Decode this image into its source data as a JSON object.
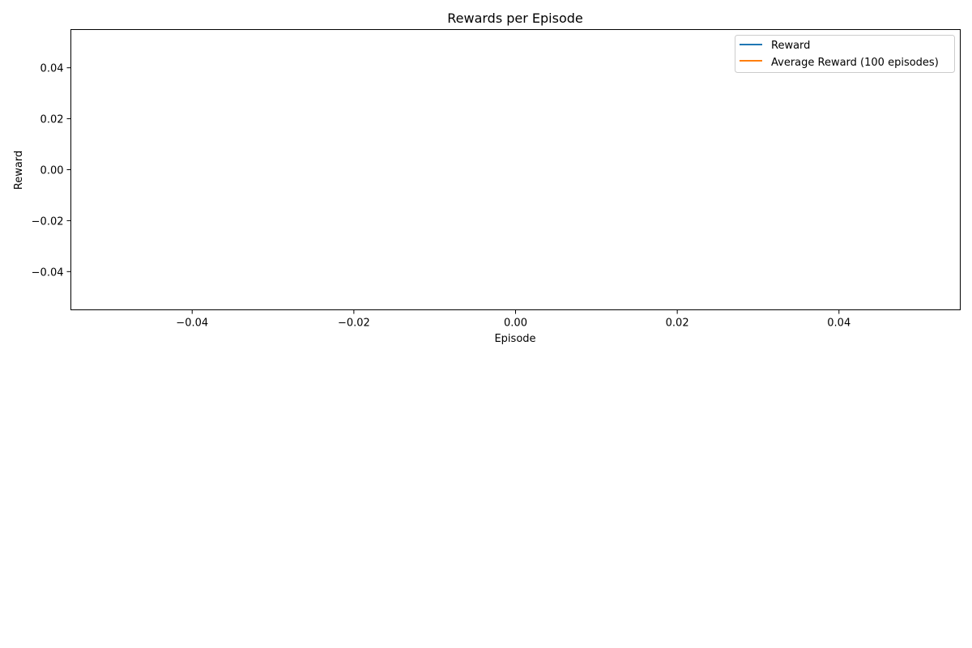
{
  "chart_data": {
    "type": "line",
    "title": "Rewards per Episode",
    "xlabel": "Episode",
    "ylabel": "Reward",
    "xlim": [
      -0.055,
      0.055
    ],
    "ylim": [
      -0.055,
      0.055
    ],
    "xticks": [
      -0.04,
      -0.02,
      0.0,
      0.02,
      0.04
    ],
    "xtick_labels": [
      "−0.04",
      "−0.02",
      "0.00",
      "0.02",
      "0.04"
    ],
    "yticks": [
      0.04,
      0.02,
      0.0,
      -0.02,
      -0.04
    ],
    "ytick_labels": [
      "0.04",
      "0.02",
      "0.00",
      "−0.02",
      "−0.04"
    ],
    "grid": false,
    "legend_position": "top-right",
    "series": [
      {
        "name": "Reward",
        "color": "#1f77b4",
        "x": [],
        "values": []
      },
      {
        "name": "Average Reward (100 episodes)",
        "color": "#ff7f0e",
        "x": [],
        "values": []
      }
    ]
  }
}
